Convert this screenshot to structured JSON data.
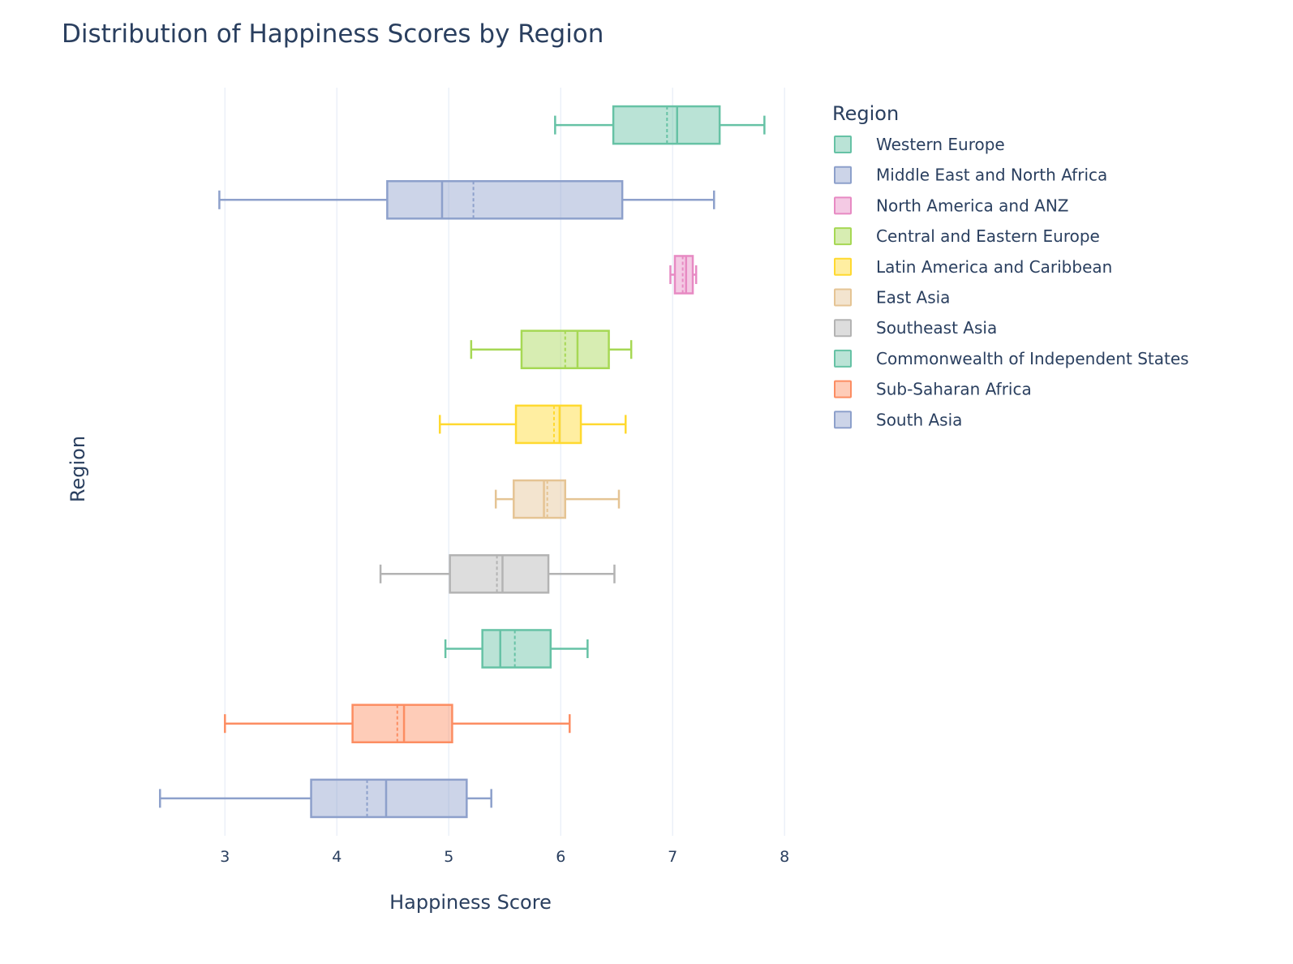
{
  "chart_data": {
    "type": "box",
    "orientation": "horizontal",
    "title": "Distribution of Happiness Scores by Region",
    "xlabel": "Happiness Score",
    "ylabel": "Region",
    "xlim": [
      2.36,
      8.1
    ],
    "x_ticks": [
      3,
      4,
      5,
      6,
      7,
      8
    ],
    "grid": "vertical",
    "legend": {
      "title": "Region",
      "placement": "right"
    },
    "series": [
      {
        "name": "Western Europe",
        "color": "#66c2a5",
        "whisker_low": 5.95,
        "q1": 6.47,
        "median": 7.04,
        "mean": 6.95,
        "q3": 7.42,
        "whisker_high": 7.82
      },
      {
        "name": "Middle East and North Africa",
        "color": "#8da0cb",
        "whisker_low": 2.95,
        "q1": 4.45,
        "median": 4.94,
        "mean": 5.22,
        "q3": 6.55,
        "whisker_high": 7.37
      },
      {
        "name": "North America and ANZ",
        "color": "#e78ac3",
        "whisker_low": 6.98,
        "q1": 7.02,
        "median": 7.12,
        "mean": 7.09,
        "q3": 7.18,
        "whisker_high": 7.21
      },
      {
        "name": "Central and Eastern Europe",
        "color": "#a6d854",
        "whisker_low": 5.2,
        "q1": 5.65,
        "median": 6.15,
        "mean": 6.04,
        "q3": 6.43,
        "whisker_high": 6.63
      },
      {
        "name": "Latin America and Caribbean",
        "color": "#ffd92f",
        "whisker_low": 4.92,
        "q1": 5.6,
        "median": 5.99,
        "mean": 5.94,
        "q3": 6.18,
        "whisker_high": 6.58
      },
      {
        "name": "East Asia",
        "color": "#e5c494",
        "whisker_low": 5.42,
        "q1": 5.58,
        "median": 5.85,
        "mean": 5.88,
        "q3": 6.04,
        "whisker_high": 6.52
      },
      {
        "name": "Southeast Asia",
        "color": "#b3b3b3",
        "whisker_low": 4.39,
        "q1": 5.01,
        "median": 5.48,
        "mean": 5.43,
        "q3": 5.89,
        "whisker_high": 6.48
      },
      {
        "name": "Commonwealth of Independent States",
        "color": "#66c2a5",
        "whisker_low": 4.97,
        "q1": 5.3,
        "median": 5.46,
        "mean": 5.59,
        "q3": 5.91,
        "whisker_high": 6.24
      },
      {
        "name": "Sub-Saharan Africa",
        "color": "#fc8d62",
        "whisker_low": 3.0,
        "q1": 4.14,
        "median": 4.6,
        "mean": 4.54,
        "q3": 5.03,
        "whisker_high": 6.08
      },
      {
        "name": "South Asia",
        "color": "#8da0cb",
        "whisker_low": 2.42,
        "q1": 3.77,
        "median": 4.44,
        "mean": 4.27,
        "q3": 5.16,
        "whisker_high": 5.38
      }
    ]
  }
}
